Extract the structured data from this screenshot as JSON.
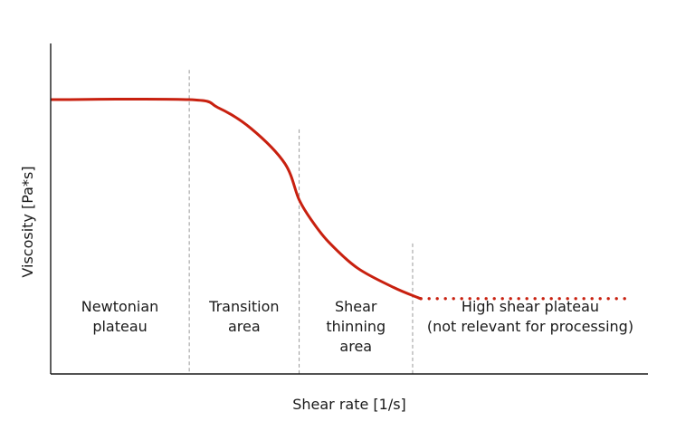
{
  "chart_data": {
    "type": "line",
    "title": "",
    "xlabel": "Shear rate [1/s]",
    "ylabel": "Viscosity [Pa*s]",
    "x_ticks_shown": false,
    "y_ticks_shown": false,
    "grid": false,
    "color": "#c8200f",
    "series": [
      {
        "values": [
          0.83,
          0.83,
          0.806,
          0.742,
          0.637,
          0.527,
          0.462,
          0.398,
          0.32,
          0.262,
          0.231,
          0.228
        ],
        "x": [
          0.0,
          0.232,
          0.28,
          0.336,
          0.392,
          0.416,
          0.438,
          0.466,
          0.514,
          0.574,
          0.615,
          0.62
        ],
        "style": "solid"
      },
      {
        "values": [
          0.228,
          0.228
        ],
        "x": [
          0.62,
          0.965
        ],
        "style": "dotted"
      }
    ],
    "regions": [
      {
        "lines": [
          "Newtonian",
          "plateau"
        ],
        "x_start": 0.0,
        "x_end": 0.232
      },
      {
        "lines": [
          "Transition",
          "area"
        ],
        "x_start": 0.232,
        "x_end": 0.416
      },
      {
        "lines": [
          "Shear",
          "thinning",
          "area"
        ],
        "x_start": 0.416,
        "x_end": 0.606
      },
      {
        "lines": [
          "High shear plateau",
          "(not relevant for processing)"
        ],
        "x_start": 0.606,
        "x_end": 1.0
      }
    ],
    "boundary_lines": [
      {
        "x": 0.232,
        "y_top": 0.92
      },
      {
        "x": 0.416,
        "y_top": 0.74
      },
      {
        "x": 0.606,
        "y_top": 0.395
      }
    ],
    "xlim": [
      0,
      1
    ],
    "ylim": [
      0,
      1
    ]
  }
}
